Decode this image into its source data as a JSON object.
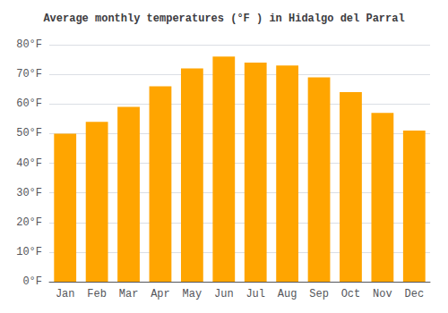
{
  "chart_data": {
    "type": "bar",
    "title": "Average monthly temperatures (°F ) in Hidalgo del Parral",
    "categories": [
      "Jan",
      "Feb",
      "Mar",
      "Apr",
      "May",
      "Jun",
      "Jul",
      "Aug",
      "Sep",
      "Oct",
      "Nov",
      "Dec"
    ],
    "values": [
      50,
      54,
      59,
      66,
      72,
      76,
      74,
      73,
      69,
      64,
      57,
      51
    ],
    "color": "#FFA500",
    "ylim": [
      0,
      80
    ],
    "yticks": [
      {
        "value": 0,
        "label": "0°F"
      },
      {
        "value": 10,
        "label": "10°F"
      },
      {
        "value": 20,
        "label": "20°F"
      },
      {
        "value": 30,
        "label": "30°F"
      },
      {
        "value": 40,
        "label": "40°F"
      },
      {
        "value": 50,
        "label": "50°F"
      },
      {
        "value": 60,
        "label": "60°F"
      },
      {
        "value": 70,
        "label": "70°F"
      },
      {
        "value": 80,
        "label": "80°F"
      }
    ],
    "grid": true
  }
}
